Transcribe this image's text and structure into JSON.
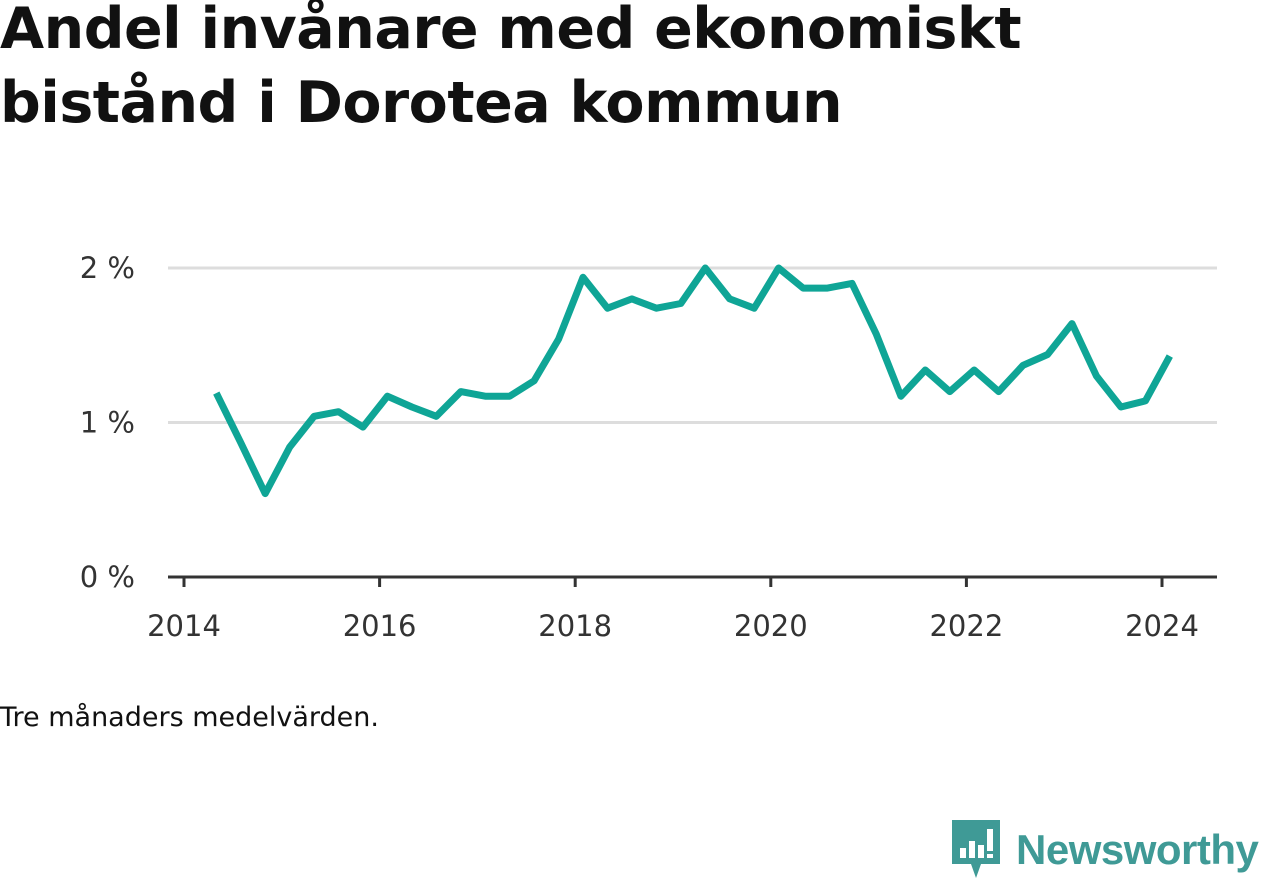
{
  "title": "Andel invånare med ekonomiskt bistånd i Dorotea kommun",
  "footnote": "Tre månaders medelvärden.",
  "brand": {
    "name": "Newsworthy",
    "icon": "bar-chart-speech-bubble-icon"
  },
  "colors": {
    "line": "#0fa596",
    "grid": "#dddddd",
    "axis": "#333333",
    "brand": "#3f9a96"
  },
  "chart_data": {
    "type": "line",
    "title": "Andel invånare med ekonomiskt bistånd i Dorotea kommun",
    "xlabel": "",
    "ylabel": "",
    "x_ticks": [
      "2014",
      "2016",
      "2018",
      "2020",
      "2022",
      "2024"
    ],
    "y_ticks": [
      "0 %",
      "1 %",
      "2 %"
    ],
    "ylim": [
      0,
      2
    ],
    "grid": true,
    "series": [
      {
        "x": [
          2014.33,
          2014.58,
          2014.83,
          2015.08,
          2015.33,
          2015.58,
          2015.83,
          2016.08,
          2016.33,
          2016.58,
          2016.83,
          2017.08,
          2017.33,
          2017.58,
          2017.83,
          2018.08,
          2018.33,
          2018.58,
          2018.83,
          2019.08,
          2019.33,
          2019.58,
          2019.83,
          2020.08,
          2020.33,
          2020.58,
          2020.83,
          2021.08,
          2021.33,
          2021.58,
          2021.83,
          2022.08,
          2022.33,
          2022.58,
          2022.83,
          2023.08,
          2023.33,
          2023.58,
          2023.83,
          2024.08
        ],
        "values": [
          1.19,
          0.87,
          0.54,
          0.84,
          1.04,
          1.07,
          0.97,
          1.17,
          1.1,
          1.04,
          1.2,
          1.17,
          1.17,
          1.27,
          1.54,
          1.94,
          1.74,
          1.8,
          1.74,
          1.77,
          2.0,
          1.8,
          1.74,
          2.0,
          1.87,
          1.87,
          1.9,
          1.57,
          1.17,
          1.34,
          1.2,
          1.34,
          1.2,
          1.37,
          1.44,
          1.64,
          1.3,
          1.1,
          1.14,
          1.43
        ]
      }
    ]
  }
}
